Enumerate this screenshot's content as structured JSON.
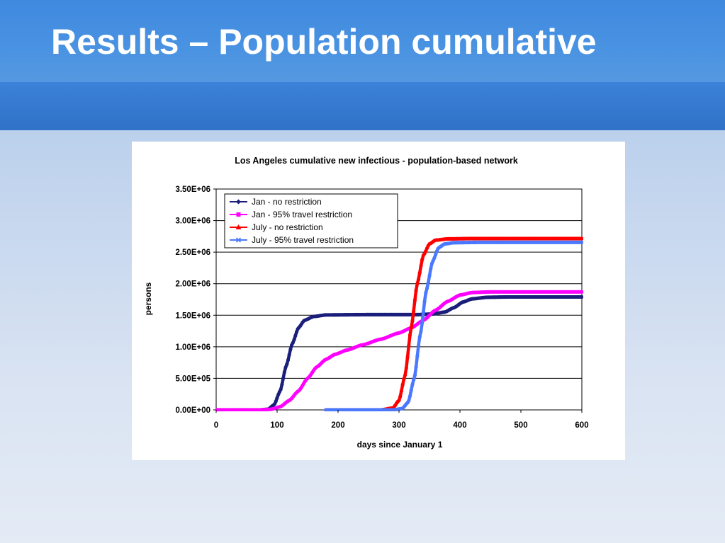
{
  "slide": {
    "title": "Results – Population cumulative"
  },
  "chart_data": {
    "type": "line",
    "title": "Los Angeles cumulative new infectious - population-based network",
    "xlabel": "days since January 1",
    "ylabel": "persons",
    "xlim": [
      0,
      600
    ],
    "ylim": [
      0,
      3500000
    ],
    "x_ticks": [
      0,
      100,
      200,
      300,
      400,
      500,
      600
    ],
    "x_tick_labels": [
      "0",
      "100",
      "200",
      "300",
      "400",
      "500",
      "600"
    ],
    "y_ticks": [
      0,
      500000,
      1000000,
      1500000,
      2000000,
      2500000,
      3000000,
      3500000
    ],
    "y_tick_labels": [
      "0.00E+00",
      "5.00E+05",
      "1.00E+06",
      "1.50E+06",
      "2.00E+06",
      "2.50E+06",
      "3.00E+06",
      "3.50E+06"
    ],
    "grid": "horizontal",
    "legend_position": "top-left",
    "series": [
      {
        "name": "Jan - no restriction",
        "color": "#1a1f7a",
        "marker": "diamond",
        "points": [
          [
            0,
            0
          ],
          [
            70,
            0
          ],
          [
            85,
            10000
          ],
          [
            95,
            80000
          ],
          [
            105,
            300000
          ],
          [
            115,
            700000
          ],
          [
            125,
            1050000
          ],
          [
            135,
            1300000
          ],
          [
            145,
            1420000
          ],
          [
            160,
            1480000
          ],
          [
            180,
            1505000
          ],
          [
            250,
            1510000
          ],
          [
            330,
            1510000
          ],
          [
            355,
            1520000
          ],
          [
            375,
            1550000
          ],
          [
            390,
            1620000
          ],
          [
            405,
            1710000
          ],
          [
            420,
            1760000
          ],
          [
            445,
            1785000
          ],
          [
            480,
            1790000
          ],
          [
            600,
            1790000
          ]
        ]
      },
      {
        "name": "Jan - 95% travel restriction",
        "color": "#ff00ff",
        "marker": "square",
        "points": [
          [
            0,
            0
          ],
          [
            70,
            0
          ],
          [
            90,
            10000
          ],
          [
            105,
            50000
          ],
          [
            120,
            150000
          ],
          [
            135,
            300000
          ],
          [
            150,
            500000
          ],
          [
            165,
            680000
          ],
          [
            180,
            800000
          ],
          [
            195,
            880000
          ],
          [
            215,
            950000
          ],
          [
            240,
            1030000
          ],
          [
            270,
            1120000
          ],
          [
            300,
            1220000
          ],
          [
            320,
            1300000
          ],
          [
            340,
            1420000
          ],
          [
            360,
            1580000
          ],
          [
            380,
            1720000
          ],
          [
            400,
            1820000
          ],
          [
            420,
            1860000
          ],
          [
            450,
            1870000
          ],
          [
            600,
            1870000
          ]
        ]
      },
      {
        "name": "July - no restriction",
        "color": "#ff0000",
        "marker": "triangle",
        "points": [
          [
            180,
            0
          ],
          [
            270,
            0
          ],
          [
            290,
            30000
          ],
          [
            300,
            150000
          ],
          [
            310,
            550000
          ],
          [
            320,
            1300000
          ],
          [
            330,
            2000000
          ],
          [
            340,
            2450000
          ],
          [
            350,
            2630000
          ],
          [
            360,
            2690000
          ],
          [
            380,
            2710000
          ],
          [
            420,
            2715000
          ],
          [
            600,
            2715000
          ]
        ]
      },
      {
        "name": "July - 95% travel restriction",
        "color": "#4a78ff",
        "marker": "x",
        "points": [
          [
            180,
            0
          ],
          [
            290,
            0
          ],
          [
            305,
            20000
          ],
          [
            315,
            120000
          ],
          [
            325,
            500000
          ],
          [
            335,
            1200000
          ],
          [
            345,
            1900000
          ],
          [
            355,
            2350000
          ],
          [
            365,
            2570000
          ],
          [
            375,
            2630000
          ],
          [
            390,
            2650000
          ],
          [
            430,
            2655000
          ],
          [
            600,
            2655000
          ]
        ]
      }
    ]
  }
}
